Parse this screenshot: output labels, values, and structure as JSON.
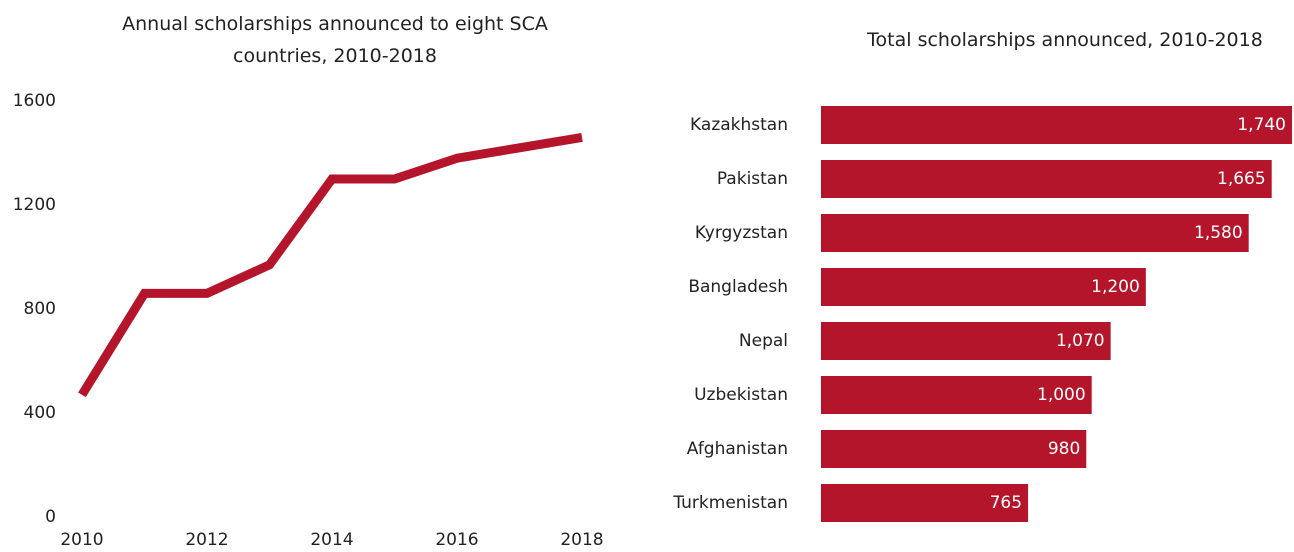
{
  "chart_data": [
    {
      "type": "line",
      "title": "Annual scholarships announced to eight SCA countries, 2010-2018",
      "x": [
        2010,
        2011,
        2012,
        2013,
        2014,
        2015,
        2016,
        2017,
        2018
      ],
      "series": [
        {
          "name": "Scholarships",
          "color": "#b5152b",
          "values": [
            470,
            860,
            860,
            970,
            1300,
            1300,
            1380,
            1420,
            1460
          ]
        }
      ],
      "xlim": [
        2010,
        2018
      ],
      "xticks": [
        2010,
        2012,
        2014,
        2016,
        2018
      ],
      "ylim": [
        0,
        1600
      ],
      "yticks": [
        0,
        400,
        800,
        1200,
        1600
      ],
      "grid": false
    },
    {
      "type": "hbar",
      "title": "Total scholarships announced, 2010-2018",
      "categories": [
        "Kazakhstan",
        "Pakistan",
        "Kyrgyzstan",
        "Bangladesh",
        "Nepal",
        "Uzbekistan",
        "Afghanistan",
        "Turkmenistan"
      ],
      "values": [
        1740,
        1665,
        1580,
        1200,
        1070,
        1000,
        980,
        765
      ],
      "value_labels": [
        "1,740",
        "1,665",
        "1,580",
        "1,200",
        "1,070",
        "1,000",
        "980",
        "765"
      ],
      "color": "#b5152b"
    }
  ]
}
